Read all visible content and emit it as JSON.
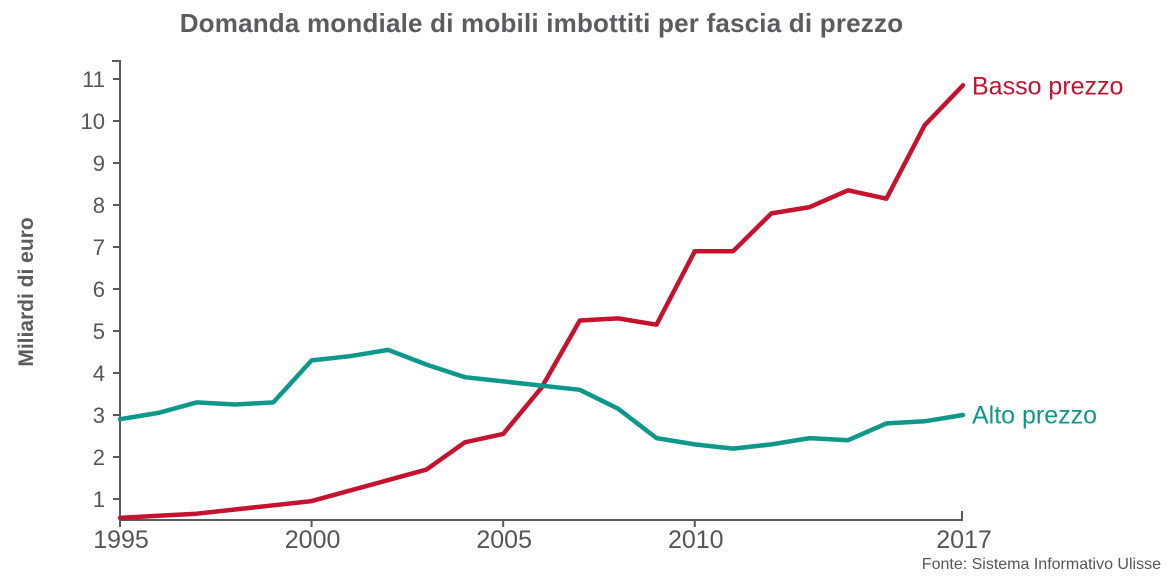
{
  "source": "Fonte: Sistema Informativo Ulisse",
  "colors": {
    "basso_prezzo": "#c5122e",
    "alto_prezzo": "#0e988b",
    "axis": "#58595c",
    "text": "#55565a",
    "title_text": "#5b5c60",
    "background": "#ffffff"
  },
  "chart_data": {
    "type": "line",
    "title": "Domanda mondiale di mobili imbottiti per fascia di prezzo",
    "xlabel": "",
    "ylabel": "Miliardi di euro",
    "x": [
      1995,
      1996,
      1997,
      1998,
      1999,
      2000,
      2001,
      2002,
      2003,
      2004,
      2005,
      2006,
      2007,
      2008,
      2009,
      2010,
      2011,
      2012,
      2013,
      2014,
      2015,
      2016,
      2017
    ],
    "series": [
      {
        "name": "Basso prezzo",
        "color": "#c5122e",
        "values": [
          0.55,
          0.6,
          0.65,
          0.75,
          0.85,
          0.95,
          1.2,
          1.45,
          1.7,
          2.35,
          2.55,
          3.65,
          5.25,
          5.3,
          5.15,
          6.9,
          6.9,
          7.8,
          7.95,
          8.35,
          8.15,
          9.9,
          10.85
        ]
      },
      {
        "name": "Alto prezzo",
        "color": "#0e988b",
        "values": [
          2.9,
          3.05,
          3.3,
          3.25,
          3.3,
          4.3,
          4.4,
          4.55,
          4.2,
          3.9,
          3.8,
          3.7,
          3.6,
          3.15,
          2.45,
          2.3,
          2.2,
          2.3,
          2.45,
          2.4,
          2.8,
          2.85,
          3.0
        ]
      }
    ],
    "xticks": [
      1995,
      2000,
      2005,
      2010,
      2017
    ],
    "yticks": [
      1,
      2,
      3,
      4,
      5,
      6,
      7,
      8,
      9,
      10,
      11
    ],
    "xlim": [
      1995,
      2017
    ],
    "ylim": [
      0.5,
      11.45
    ],
    "grid": false,
    "legend_position": "end-of-line"
  }
}
